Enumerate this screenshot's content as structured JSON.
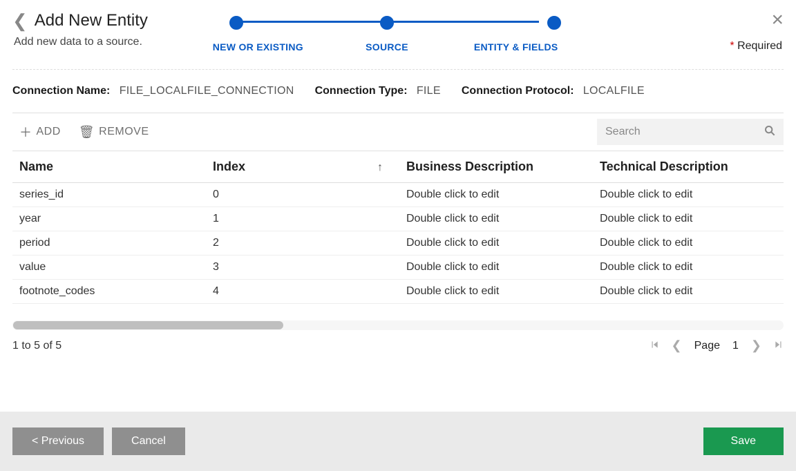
{
  "header": {
    "title": "Add New Entity",
    "subtitle": "Add new data to a source.",
    "required_label": "Required"
  },
  "stepper": {
    "active_color": "#0a5bc4",
    "steps": [
      "NEW OR EXISTING",
      "SOURCE",
      "ENTITY & FIELDS"
    ]
  },
  "connection": {
    "name_label": "Connection Name:",
    "name_value": "FILE_LOCALFILE_CONNECTION",
    "type_label": "Connection Type:",
    "type_value": "FILE",
    "protocol_label": "Connection Protocol:",
    "protocol_value": "LOCALFILE"
  },
  "toolbar": {
    "add_label": "ADD",
    "remove_label": "REMOVE",
    "search_placeholder": "Search"
  },
  "grid": {
    "columns": {
      "name": "Name",
      "index": "Index",
      "business": "Business Description",
      "technical": "Technical Description"
    },
    "sort_column": "index",
    "sort_dir": "asc",
    "edit_placeholder": "Double click to edit",
    "rows": [
      {
        "name": "series_id",
        "index": "0",
        "business": "Double click to edit",
        "technical": "Double click to edit"
      },
      {
        "name": "year",
        "index": "1",
        "business": "Double click to edit",
        "technical": "Double click to edit"
      },
      {
        "name": "period",
        "index": "2",
        "business": "Double click to edit",
        "technical": "Double click to edit"
      },
      {
        "name": "value",
        "index": "3",
        "business": "Double click to edit",
        "technical": "Double click to edit"
      },
      {
        "name": "footnote_codes",
        "index": "4",
        "business": "Double click to edit",
        "technical": "Double click to edit"
      }
    ],
    "scrollbar_thumb_pct": 35
  },
  "pager": {
    "summary": "1 to 5 of 5",
    "page_label": "Page",
    "page_number": "1"
  },
  "footer": {
    "previous_label": "< Previous",
    "cancel_label": "Cancel",
    "save_label": "Save"
  },
  "colors": {
    "primary": "#0a5bc4",
    "green": "#1a9950",
    "grey_btn": "#8f8f8f",
    "footer_bg": "#eaeaea",
    "border": "#e0e0e0",
    "muted": "#707070"
  }
}
